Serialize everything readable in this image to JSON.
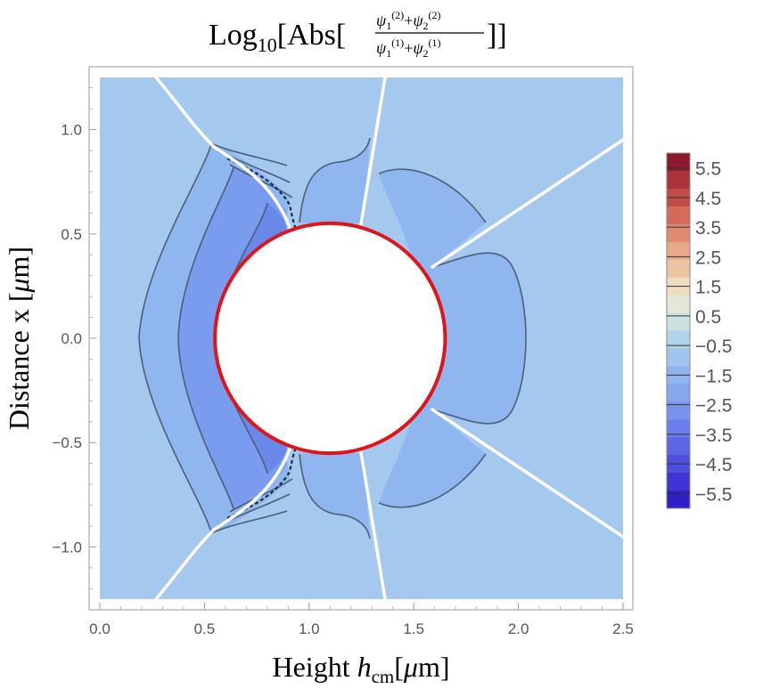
{
  "chart_data": {
    "type": "contour",
    "title": {
      "prefix": "Log",
      "prefix_sub": "10",
      "func": "[Abs[",
      "numerator": {
        "a": "ψ",
        "a_sub": "1",
        "a_sup": "(2)",
        "op": "+",
        "b": "ψ",
        "b_sub": "2",
        "b_sup": "(2)"
      },
      "denominator": {
        "a": "ψ",
        "a_sub": "1",
        "a_sup": "(1)",
        "op": "+",
        "b": "ψ",
        "b_sub": "2",
        "b_sup": "(1)"
      },
      "close": "]]"
    },
    "xlabel": {
      "main": "Height ",
      "var": "h",
      "var_sub": "cm",
      "unit_open": "[",
      "unit_mu": "μ",
      "unit_rest": "m]"
    },
    "ylabel": {
      "main": "Distance x [",
      "unit_mu": "μ",
      "unit_rest": "m]"
    },
    "xlim": [
      0,
      2.5
    ],
    "ylim": [
      -1.25,
      1.25
    ],
    "x_ticks": [
      "0.0",
      "0.5",
      "1.0",
      "1.5",
      "2.0",
      "2.5"
    ],
    "x_tick_values": [
      0,
      0.5,
      1.0,
      1.5,
      2.0,
      2.5
    ],
    "y_ticks": [
      "1.0",
      "0.5",
      "0.0",
      "−0.5",
      "−1.0"
    ],
    "y_tick_values": [
      1.0,
      0.5,
      0.0,
      -0.5,
      -1.0
    ],
    "obstacle": {
      "shape": "circle",
      "center_x": 1.1,
      "center_y": 0.0,
      "radius": 0.55,
      "color": "#e0151a"
    },
    "colorbar": {
      "labels": [
        "5.5",
        "4.5",
        "3.5",
        "2.5",
        "1.5",
        "0.5",
        "−0.5",
        "−1.5",
        "−2.5",
        "−3.5",
        "−4.5",
        "−5.5"
      ],
      "values": [
        5.5,
        4.5,
        3.5,
        2.5,
        1.5,
        0.5,
        -0.5,
        -1.5,
        -2.5,
        -3.5,
        -4.5,
        -5.5
      ],
      "range": [
        -6,
        6
      ],
      "colors_top_to_bottom": [
        "#8c1a2c",
        "#a8343a",
        "#c14d4a",
        "#d46a5a",
        "#df8a70",
        "#e6a98a",
        "#ebc4a2",
        "#edddc0",
        "#e4e7d6",
        "#cce2e2",
        "#b0d3e8",
        "#a0c4ec",
        "#92b4ee",
        "#86a6ee",
        "#7a94ee",
        "#6b7eeb",
        "#5c66e4",
        "#4e4fdc",
        "#3e35d4",
        "#2f1fc8"
      ]
    },
    "field_colors": {
      "background": "#a4c8ee",
      "level_1": "#8fb6ee",
      "level_2": "#7a9cee",
      "level_3": "#6a88ea",
      "contour_line": "#4b5f78",
      "branch_cut": "#ffffff"
    }
  }
}
